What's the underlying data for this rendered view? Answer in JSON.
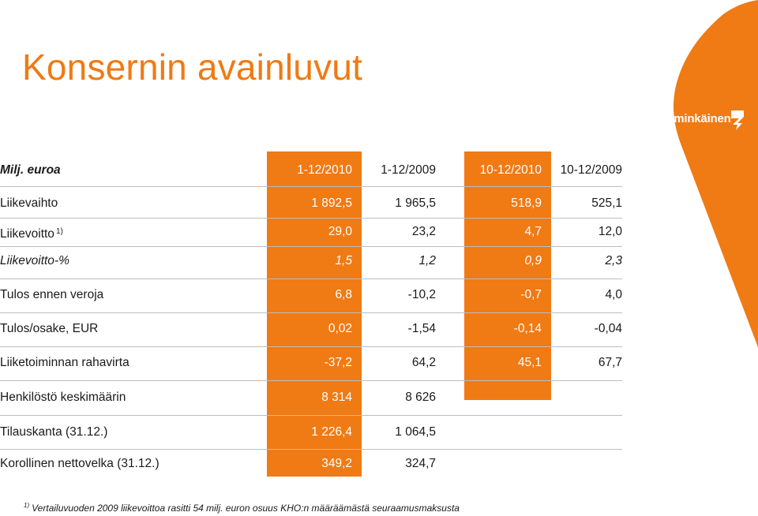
{
  "title": "Konsernin avainluvut",
  "logo": {
    "text": "Lemminkäinen",
    "icon": "lemminkainen-logo-mark"
  },
  "colors": {
    "accent": "#f07a14",
    "text": "#1a1a1a",
    "white": "#ffffff"
  },
  "table": {
    "header": [
      "Milj. euroa",
      "1-12/2010",
      "1-12/2009",
      "10-12/2010",
      "10-12/2009"
    ],
    "rows": [
      {
        "label": "Liikevaihto",
        "sup": "",
        "values": [
          "1 892,5",
          "1 965,5",
          "518,9",
          "525,1"
        ],
        "italic": false
      },
      {
        "label": "Liikevoitto",
        "sup": "1)",
        "values": [
          "29,0",
          "23,2",
          "4,7",
          "12,0"
        ],
        "italic": false
      },
      {
        "label": "Liikevoitto-%",
        "sup": "",
        "values": [
          "1,5",
          "1,2",
          "0,9",
          "2,3"
        ],
        "italic": true
      },
      {
        "label": "Tulos ennen veroja",
        "sup": "",
        "values": [
          "6,8",
          "-10,2",
          "-0,7",
          "4,0"
        ],
        "italic": false
      },
      {
        "label": "Tulos/osake, EUR",
        "sup": "",
        "values": [
          "0,02",
          "-1,54",
          "-0,14",
          "-0,04"
        ],
        "italic": false
      },
      {
        "label": "Liiketoiminnan rahavirta",
        "sup": "",
        "values": [
          "-37,2",
          "64,2",
          "45,1",
          "67,7"
        ],
        "italic": false
      },
      {
        "label": "Henkilöstö keskimäärin",
        "sup": "",
        "values": [
          "8 314",
          "8 626",
          "",
          ""
        ],
        "italic": false
      },
      {
        "label": "Tilauskanta (31.12.)",
        "sup": "",
        "values": [
          "1 226,4",
          "1 064,5",
          "",
          ""
        ],
        "italic": false
      },
      {
        "label": "Korollinen nettovelka (31.12.)",
        "sup": "",
        "values": [
          "349,2",
          "324,7",
          "",
          ""
        ],
        "italic": false
      }
    ]
  },
  "footnote": {
    "marker": "1)",
    "text": "Vertailuvuoden 2009 liikevoittoa rasitti 54 milj. euron osuus KHO:n määräämästä seuraamusmaksusta"
  }
}
